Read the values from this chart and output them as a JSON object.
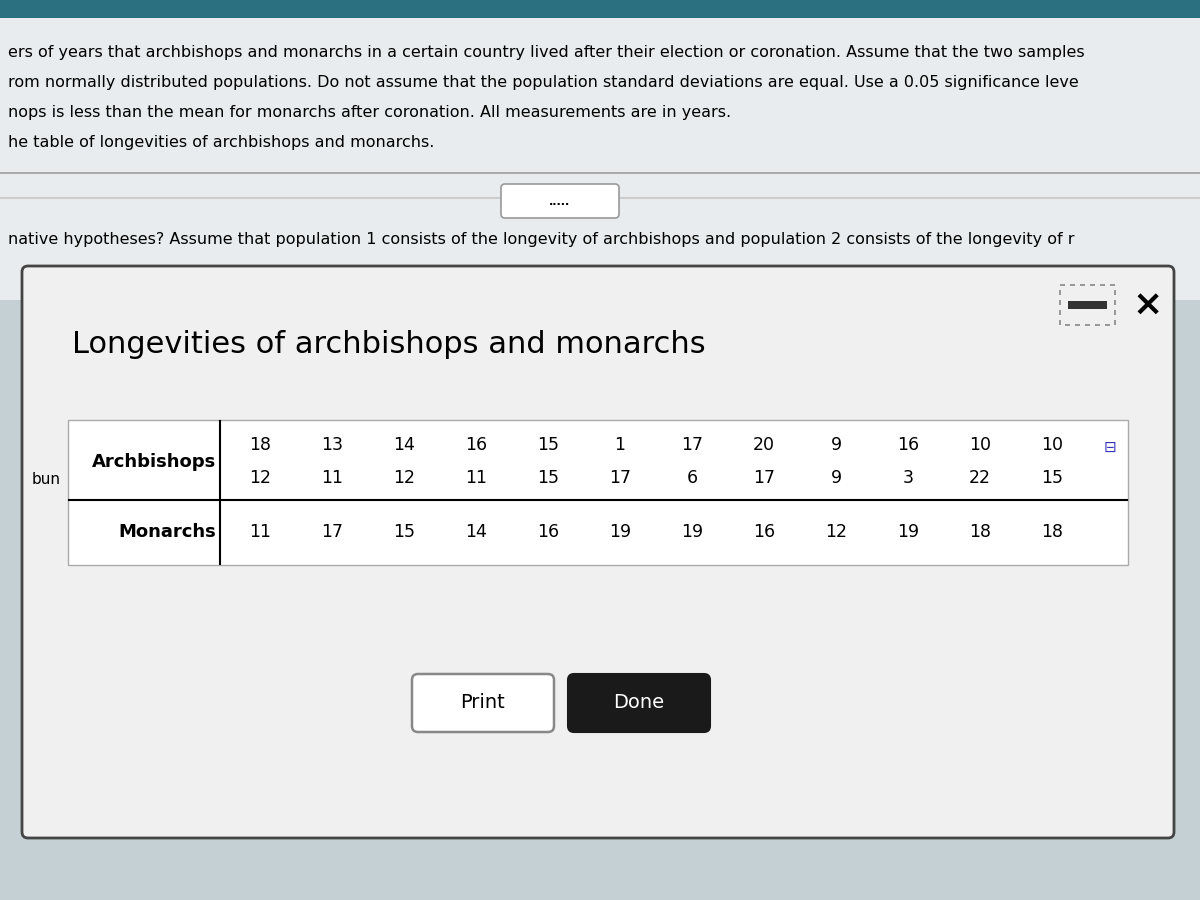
{
  "title": "Longevities of archbishops and monarchs",
  "archbishops_row1": [
    18,
    13,
    14,
    16,
    15,
    1,
    17,
    20,
    9,
    16,
    10,
    10
  ],
  "archbishops_row2": [
    12,
    11,
    12,
    11,
    15,
    17,
    6,
    17,
    9,
    3,
    22,
    15
  ],
  "monarchs_row": [
    11,
    17,
    15,
    14,
    16,
    19,
    19,
    16,
    12,
    19,
    18,
    18
  ],
  "header_text_lines": [
    "ers of years that archbishops and monarchs in a certain country lived after their election or coronation. Assume that the two samples",
    "rom normally distributed populations. Do not assume that the population standard deviations are equal. Use a 0.05 significance leve",
    "nops is less than the mean for monarchs after coronation. All measurements are in years.",
    "he table of longevities of archbishops and monarchs."
  ],
  "dots_text": ".....",
  "middle_text": "native hypotheses? Assume that population 1 consists of the longevity of archbishops and population 2 consists of the longevity of r",
  "bg_top_color": "#e8eef2",
  "bg_bottom_color": "#ccd8dc",
  "dialog_bg": "#f2f2f2",
  "dialog_edge": "#555555",
  "table_bg": "#ffffff",
  "print_button": "Print",
  "done_button": "Done",
  "popup_label": "bun"
}
